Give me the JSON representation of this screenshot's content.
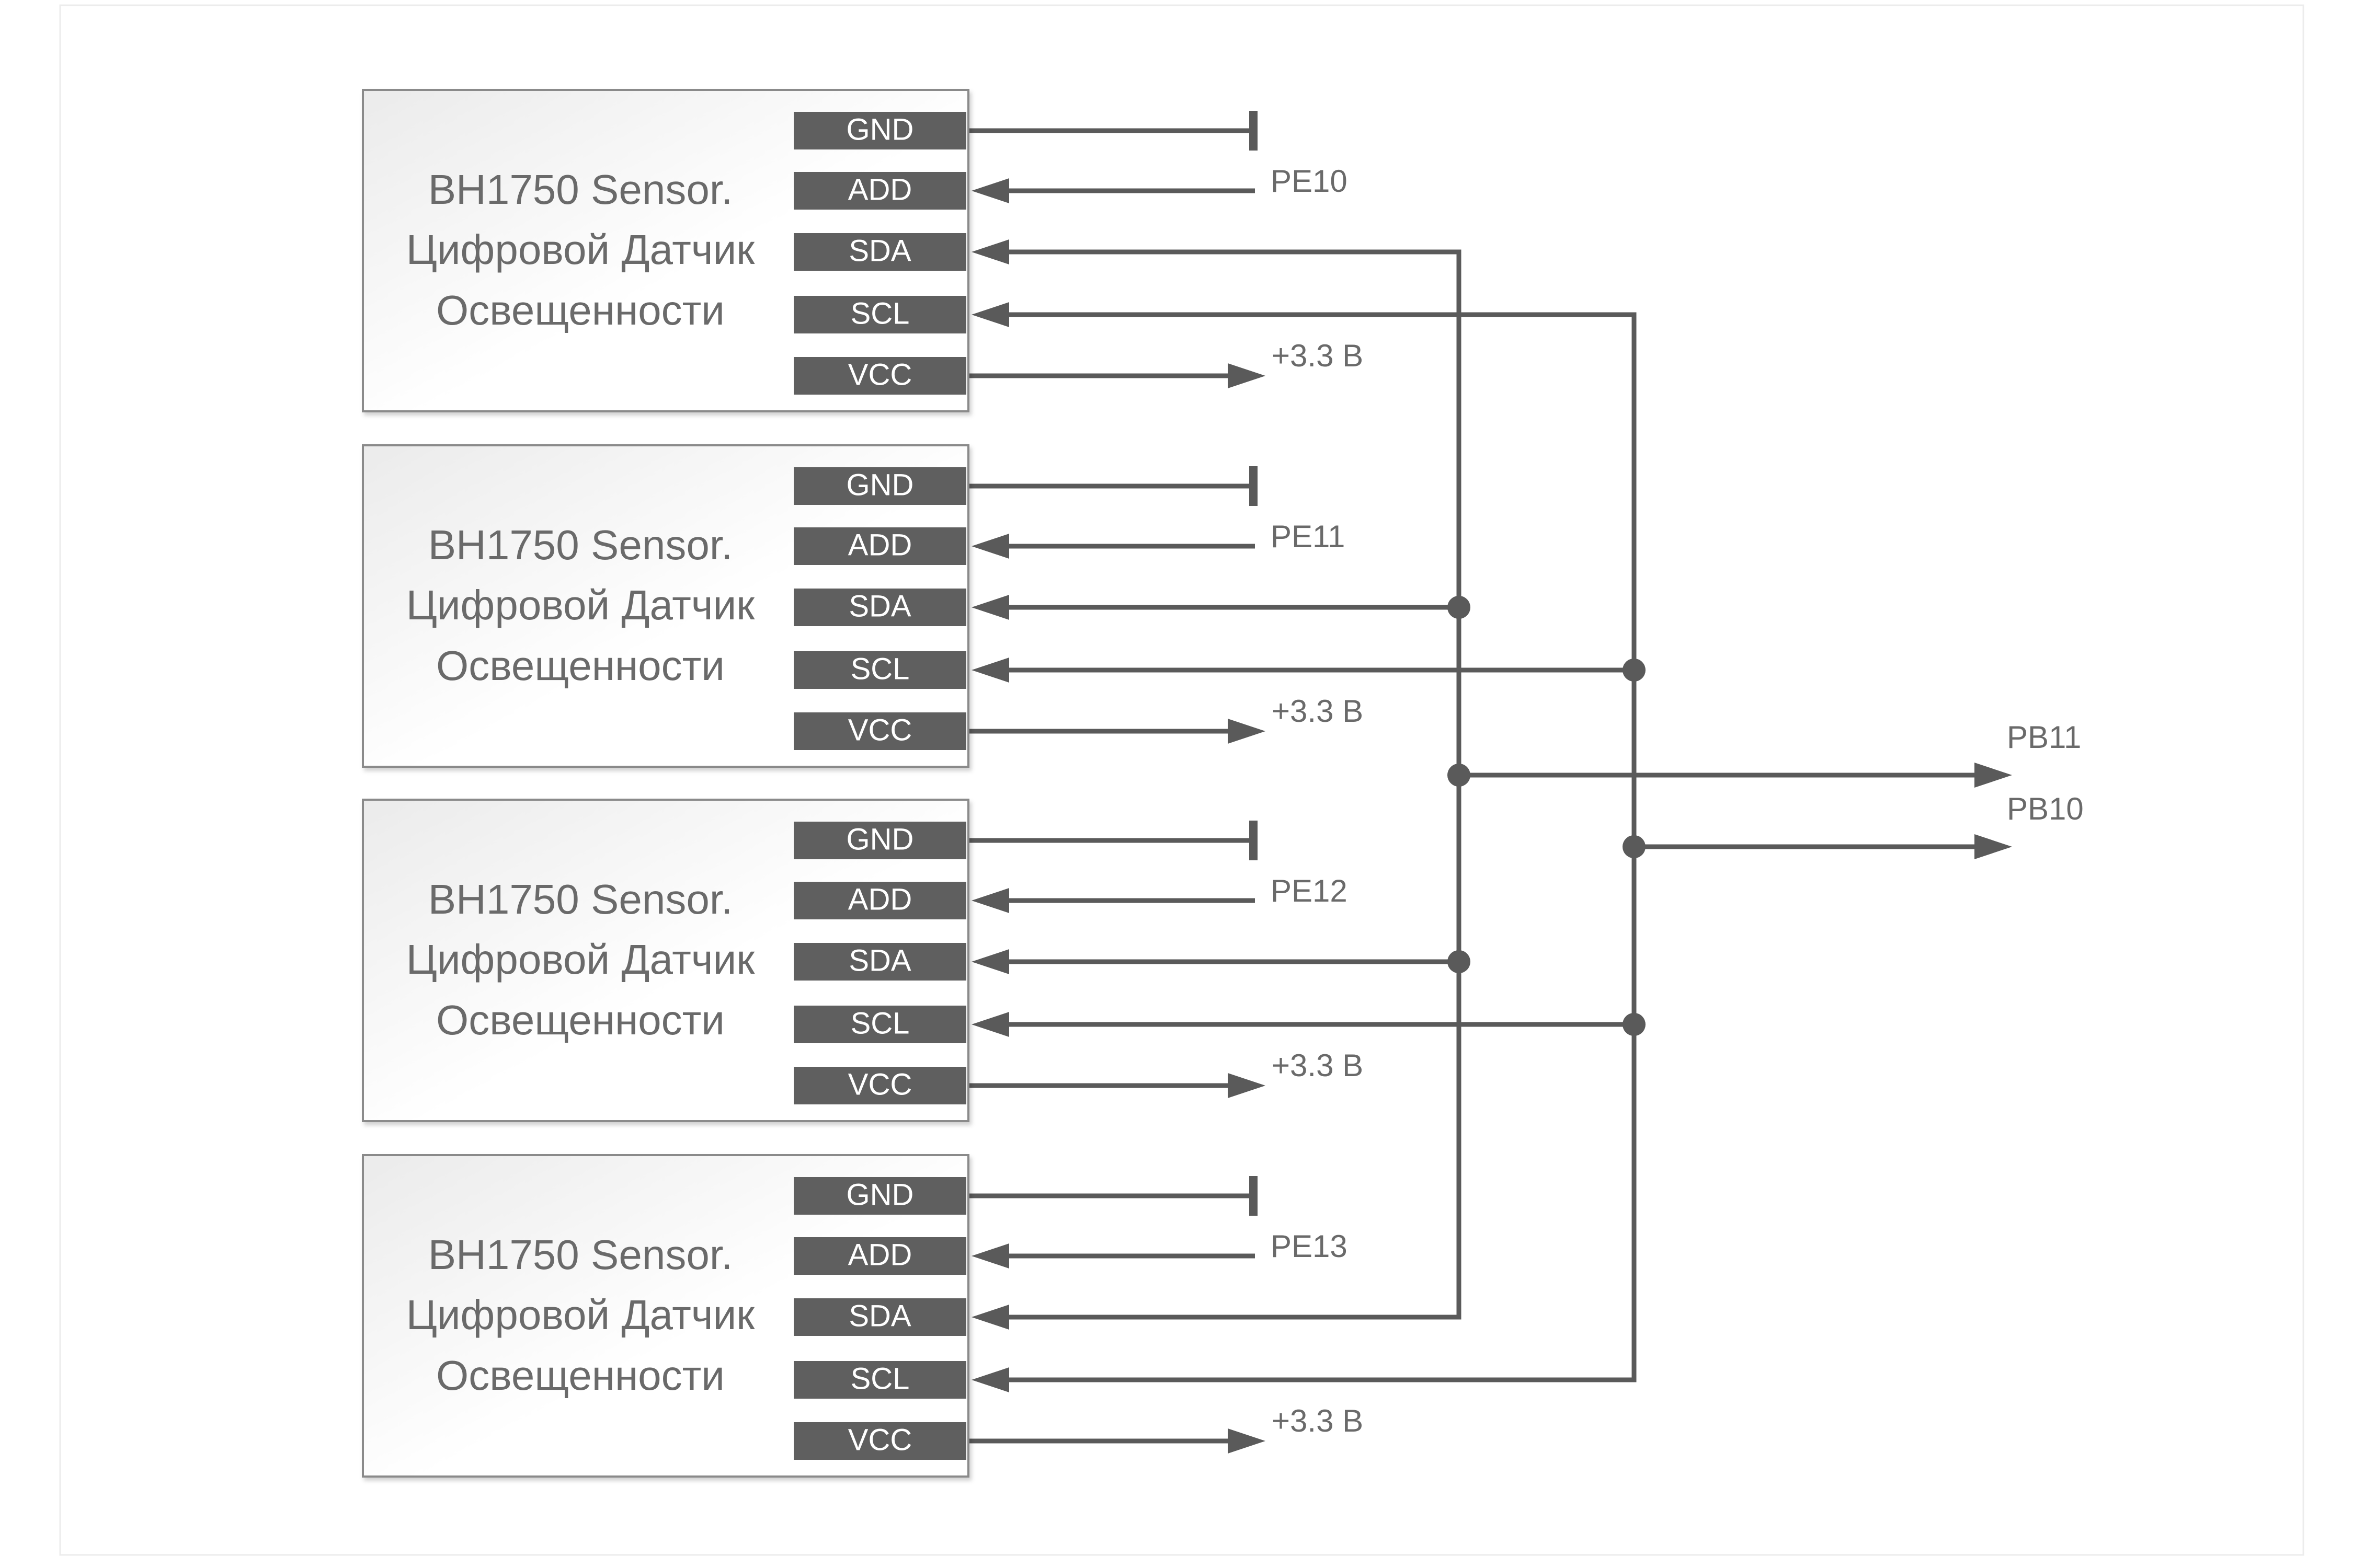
{
  "modules": [
    {
      "title_lines": [
        "BH1750 Sensor.",
        "Цифровой Датчик",
        "Освещенности"
      ],
      "pins": [
        "GND",
        "ADD",
        "SDA",
        "SCL",
        "VCC"
      ],
      "add_net": "PE10",
      "vcc_net": "+3.3 В"
    },
    {
      "title_lines": [
        "BH1750 Sensor.",
        "Цифровой Датчик",
        "Освещенности"
      ],
      "pins": [
        "GND",
        "ADD",
        "SDA",
        "SCL",
        "VCC"
      ],
      "add_net": "PE11",
      "vcc_net": "+3.3 В"
    },
    {
      "title_lines": [
        "BH1750 Sensor.",
        "Цифровой Датчик",
        "Освещенности"
      ],
      "pins": [
        "GND",
        "ADD",
        "SDA",
        "SCL",
        "VCC"
      ],
      "add_net": "PE12",
      "vcc_net": "+3.3 В"
    },
    {
      "title_lines": [
        "BH1750 Sensor.",
        "Цифровой Датчик",
        "Освещенности"
      ],
      "pins": [
        "GND",
        "ADD",
        "SDA",
        "SCL",
        "VCC"
      ],
      "add_net": "PE13",
      "vcc_net": "+3.3 В"
    }
  ],
  "bus_outputs": [
    {
      "net": "SDA",
      "label": "PB11"
    },
    {
      "net": "SCL",
      "label": "PB10"
    }
  ],
  "colors": {
    "line": "#5a5a5a",
    "pin_fill": "#5f5f5f",
    "box_border": "#8a8a8a",
    "text": "#6a6a6a"
  }
}
